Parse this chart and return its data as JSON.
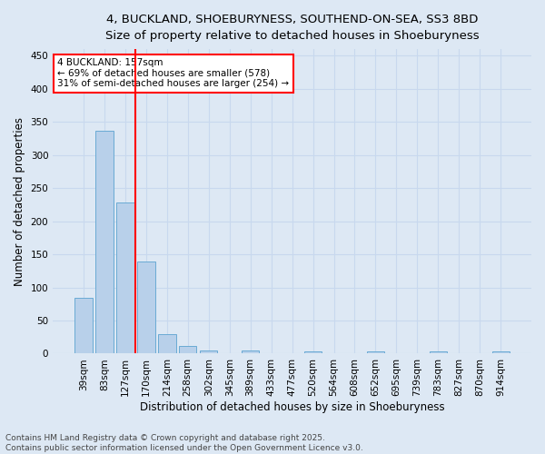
{
  "title_line1": "4, BUCKLAND, SHOEBURYNESS, SOUTHEND-ON-SEA, SS3 8BD",
  "title_line2": "Size of property relative to detached houses in Shoeburyness",
  "xlabel": "Distribution of detached houses by size in Shoeburyness",
  "ylabel": "Number of detached properties",
  "bar_labels": [
    "39sqm",
    "83sqm",
    "127sqm",
    "170sqm",
    "214sqm",
    "258sqm",
    "302sqm",
    "345sqm",
    "389sqm",
    "433sqm",
    "477sqm",
    "520sqm",
    "564sqm",
    "608sqm",
    "652sqm",
    "695sqm",
    "739sqm",
    "783sqm",
    "827sqm",
    "870sqm",
    "914sqm"
  ],
  "bar_values": [
    84,
    337,
    229,
    139,
    30,
    11,
    5,
    0,
    5,
    0,
    0,
    3,
    0,
    0,
    3,
    0,
    0,
    3,
    0,
    0,
    3
  ],
  "bar_color": "#b8d0ea",
  "bar_edgecolor": "#6aaad4",
  "vline_color": "red",
  "vline_pos": 2.5,
  "annotation_text": "4 BUCKLAND: 157sqm\n← 69% of detached houses are smaller (578)\n31% of semi-detached houses are larger (254) →",
  "annotation_box_edgecolor": "red",
  "annotation_bg_color": "white",
  "ylim": [
    0,
    460
  ],
  "yticks": [
    0,
    50,
    100,
    150,
    200,
    250,
    300,
    350,
    400,
    450
  ],
  "grid_color": "#c8d8ee",
  "bg_color": "#dde8f4",
  "footer_line1": "Contains HM Land Registry data © Crown copyright and database right 2025.",
  "footer_line2": "Contains public sector information licensed under the Open Government Licence v3.0.",
  "title_fontsize": 9.5,
  "subtitle_fontsize": 9,
  "axis_label_fontsize": 8.5,
  "tick_fontsize": 7.5,
  "annotation_fontsize": 7.5,
  "footer_fontsize": 6.5
}
